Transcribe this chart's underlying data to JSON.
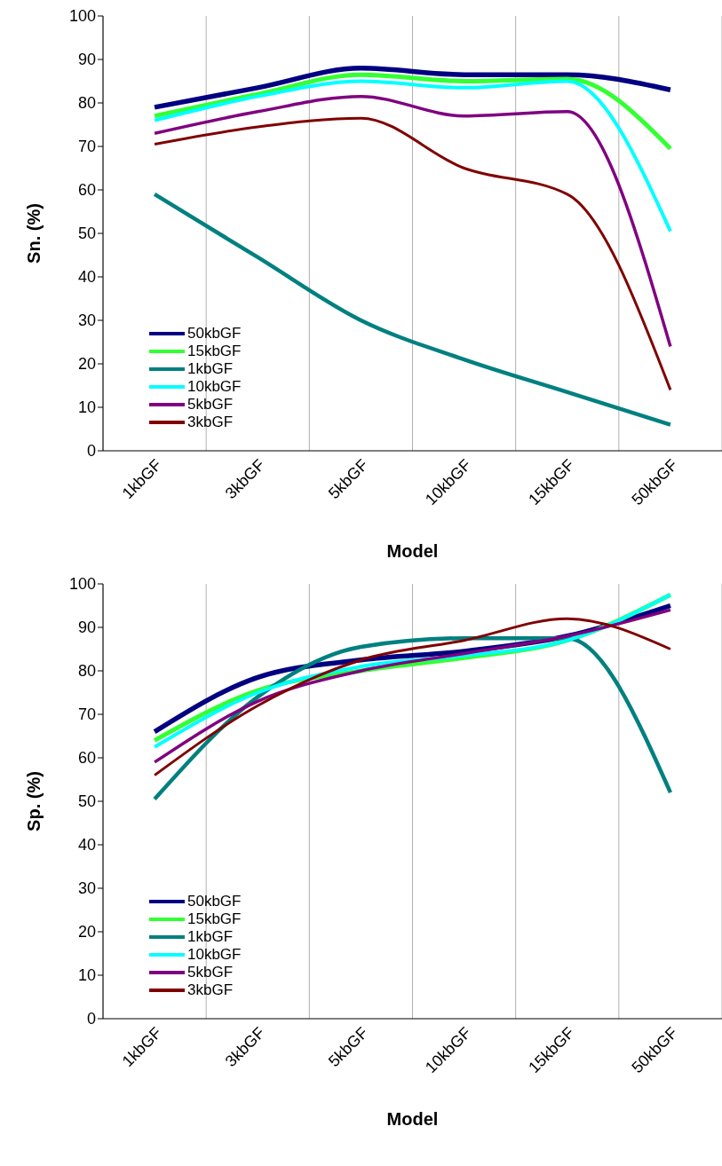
{
  "chart_data": [
    {
      "type": "line",
      "xlabel": "Model",
      "ylabel": "Sn. (%)",
      "categories": [
        "1kbGF",
        "3kbGF",
        "5kbGF",
        "10kbGF",
        "15kbGF",
        "50kbGF"
      ],
      "ylim": [
        0,
        100
      ],
      "yticks": [
        0,
        10,
        20,
        30,
        40,
        50,
        60,
        70,
        80,
        90,
        100
      ],
      "grid": true,
      "legend": "bottom left",
      "marker": "none",
      "line_style": "solid",
      "series": [
        {
          "name": "50kbGF",
          "color": "#000080",
          "values": [
            79,
            83.5,
            88,
            86.5,
            86.5,
            83
          ]
        },
        {
          "name": "15kbGF",
          "color": "#33ff33",
          "values": [
            77,
            82,
            86.5,
            85,
            85.5,
            69.5
          ]
        },
        {
          "name": "1kbGF",
          "color": "#008080",
          "values": [
            59,
            44.5,
            30,
            21,
            13.5,
            6
          ]
        },
        {
          "name": "10kbGF",
          "color": "#00ffff",
          "values": [
            76,
            81.5,
            85,
            83.5,
            85,
            50.5
          ]
        },
        {
          "name": "5kbGF",
          "color": "#800080",
          "values": [
            73,
            78,
            81.5,
            77,
            78,
            24
          ]
        },
        {
          "name": "3kbGF",
          "color": "#800000",
          "values": [
            70.5,
            74.5,
            76.5,
            65,
            59,
            14
          ]
        }
      ]
    },
    {
      "type": "line",
      "xlabel": "Model",
      "ylabel": "Sp. (%)",
      "categories": [
        "1kbGF",
        "3kbGF",
        "5kbGF",
        "10kbGF",
        "15kbGF",
        "50kbGF"
      ],
      "ylim": [
        0,
        100
      ],
      "yticks": [
        0,
        10,
        20,
        30,
        40,
        50,
        60,
        70,
        80,
        90,
        100
      ],
      "grid": true,
      "legend": "bottom left",
      "marker": "none",
      "line_style": "solid",
      "series": [
        {
          "name": "50kbGF",
          "color": "#000080",
          "values": [
            66,
            78.5,
            82.5,
            84.5,
            88,
            95
          ]
        },
        {
          "name": "15kbGF",
          "color": "#33ff33",
          "values": [
            64,
            75.5,
            80,
            83,
            87,
            97.5
          ]
        },
        {
          "name": "1kbGF",
          "color": "#008080",
          "values": [
            50.5,
            74,
            85.5,
            87.5,
            87.5,
            52
          ]
        },
        {
          "name": "10kbGF",
          "color": "#00ffff",
          "values": [
            62.5,
            75,
            81,
            83.5,
            87,
            97.5
          ]
        },
        {
          "name": "5kbGF",
          "color": "#800080",
          "values": [
            59,
            73,
            80,
            84,
            88,
            94
          ]
        },
        {
          "name": "3kbGF",
          "color": "#800000",
          "values": [
            56,
            72,
            82.5,
            87,
            92,
            85
          ]
        }
      ]
    }
  ]
}
